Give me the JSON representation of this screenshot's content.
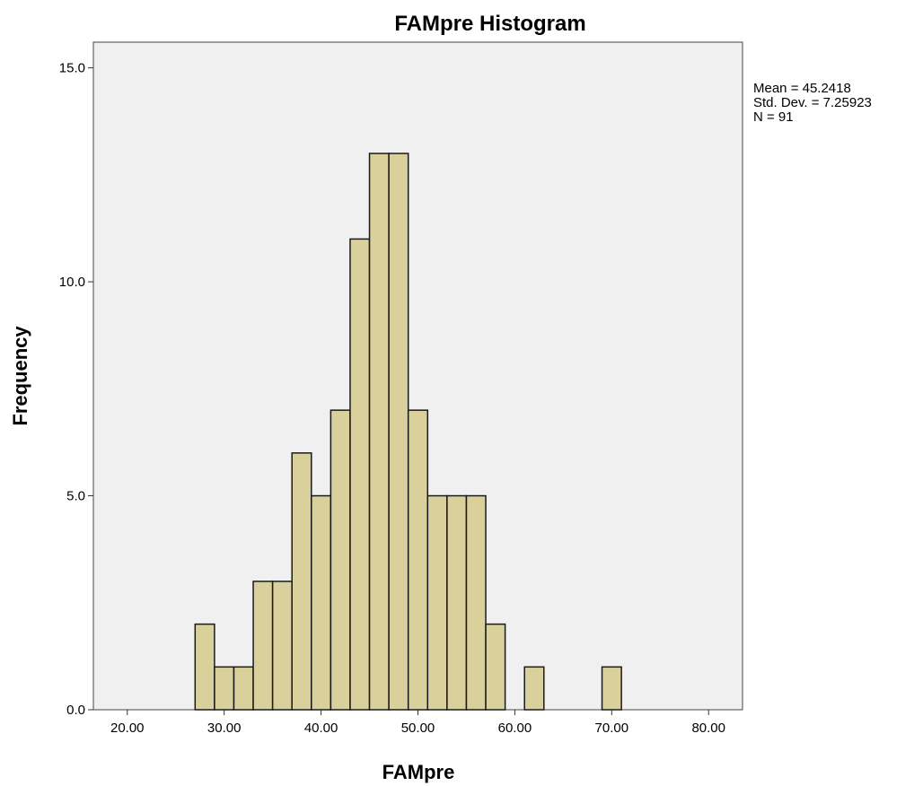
{
  "chart_data": {
    "type": "bar",
    "title": "FAMpre Histogram",
    "xlabel": "FAMpre",
    "ylabel": "Frequency",
    "xlim": [
      16.5,
      83.5
    ],
    "ylim": [
      0,
      15.6
    ],
    "bin_width": 2.0,
    "bins": [
      {
        "start": 27.0,
        "count": 2
      },
      {
        "start": 29.0,
        "count": 1
      },
      {
        "start": 31.0,
        "count": 1
      },
      {
        "start": 33.0,
        "count": 3
      },
      {
        "start": 35.0,
        "count": 3
      },
      {
        "start": 37.0,
        "count": 6
      },
      {
        "start": 39.0,
        "count": 5
      },
      {
        "start": 41.0,
        "count": 7
      },
      {
        "start": 43.0,
        "count": 11
      },
      {
        "start": 45.0,
        "count": 13
      },
      {
        "start": 47.0,
        "count": 13
      },
      {
        "start": 49.0,
        "count": 7
      },
      {
        "start": 51.0,
        "count": 5
      },
      {
        "start": 53.0,
        "count": 5
      },
      {
        "start": 55.0,
        "count": 5
      },
      {
        "start": 57.0,
        "count": 2
      },
      {
        "start": 61.0,
        "count": 1
      },
      {
        "start": 69.0,
        "count": 1
      }
    ],
    "x_ticks": [
      20,
      30,
      40,
      50,
      60,
      70,
      80
    ],
    "x_tick_labels": [
      "20.00",
      "30.00",
      "40.00",
      "50.00",
      "60.00",
      "70.00",
      "80.00"
    ],
    "y_ticks": [
      0,
      5,
      10,
      15
    ],
    "y_tick_labels": [
      "0.0",
      "5.0",
      "10.0",
      "15.0"
    ],
    "stats": [
      "Mean = 45.2418",
      "Std. Dev. = 7.25923",
      "N = 91"
    ],
    "grid": false,
    "colors": {
      "bar_fill": "#d9d09b",
      "bar_stroke": "#1a1a1a",
      "plot_bg": "#f0f0f0",
      "frame": "#444444"
    }
  }
}
